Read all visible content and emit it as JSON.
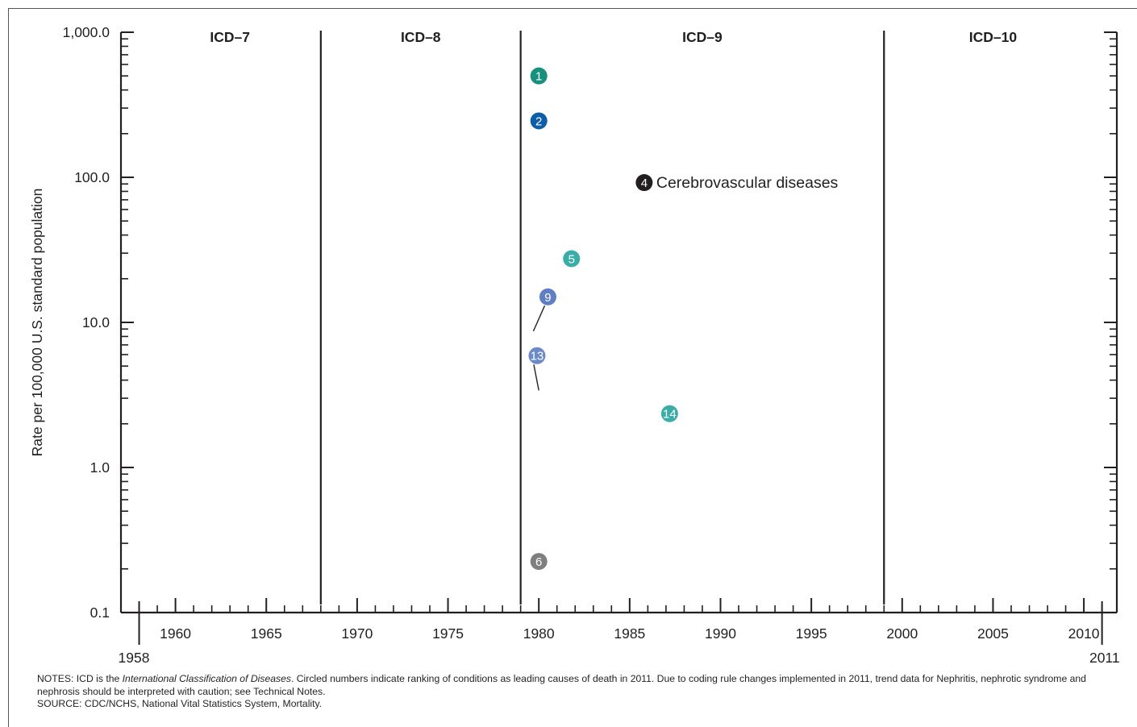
{
  "chart_data": {
    "type": "scatter",
    "title": "",
    "xlabel": "",
    "ylabel": "Rate per 100,000 U.S. standard population",
    "xlim": [
      1958,
      2011
    ],
    "ylim": [
      0.1,
      1000
    ],
    "yscale": "log",
    "grid": false,
    "x_ticks": [
      1960,
      1965,
      1970,
      1975,
      1980,
      1985,
      1990,
      1995,
      2000,
      2005,
      2010
    ],
    "x_tick_labels": [
      "1960",
      "1965",
      "1970",
      "1975",
      "1980",
      "1985",
      "1990",
      "1995",
      "2000",
      "2005",
      "2010"
    ],
    "x_end_labels": [
      "1958",
      "2011"
    ],
    "y_ticks": [
      0.1,
      1,
      10,
      100,
      1000
    ],
    "y_tick_labels": [
      "0.1",
      "1.0",
      "10.0",
      "100.0",
      "1,000.0"
    ],
    "periods": [
      {
        "label": "ICD–7",
        "start": 1958,
        "end": 1968
      },
      {
        "label": "ICD–8",
        "start": 1968,
        "end": 1979
      },
      {
        "label": "ICD–9",
        "start": 1979,
        "end": 1999
      },
      {
        "label": "ICD–10",
        "start": 1999,
        "end": 2011
      }
    ],
    "markers": [
      {
        "rank": "1",
        "x": 1980,
        "y": 500,
        "color": "#17907e"
      },
      {
        "rank": "2",
        "x": 1980,
        "y": 245,
        "color": "#0d5ea8"
      },
      {
        "rank": "4",
        "x": 1985.8,
        "y": 92,
        "color": "#231f20",
        "label": "Cerebrovascular diseases"
      },
      {
        "rank": "5",
        "x": 1981.8,
        "y": 27.5,
        "color": "#3aada6"
      },
      {
        "rank": "9",
        "x": 1980.5,
        "y": 15,
        "color": "#5f7fc2",
        "leader_to": [
          1979.7,
          8.7
        ]
      },
      {
        "rank": "13",
        "x": 1979.9,
        "y": 5.9,
        "color": "#6d8ac8",
        "leader_to": [
          1980,
          3.4
        ]
      },
      {
        "rank": "14",
        "x": 1987.2,
        "y": 2.35,
        "color": "#3aada6"
      },
      {
        "rank": "6",
        "x": 1980,
        "y": 0.225,
        "color": "#7f7f7f"
      }
    ],
    "notes_prefix": "NOTES: ICD is the ",
    "notes_italic": "International Classification of Diseases",
    "notes_rest": ". Circled numbers indicate ranking of conditions as leading causes of death in 2011. Due to coding rule changes implemented in 2011, trend data for Nephritis, nephrotic syndrome and nephrosis should be interpreted with caution; see Technical Notes.",
    "source": "SOURCE: CDC/NCHS, National Vital Statistics System, Mortality."
  }
}
